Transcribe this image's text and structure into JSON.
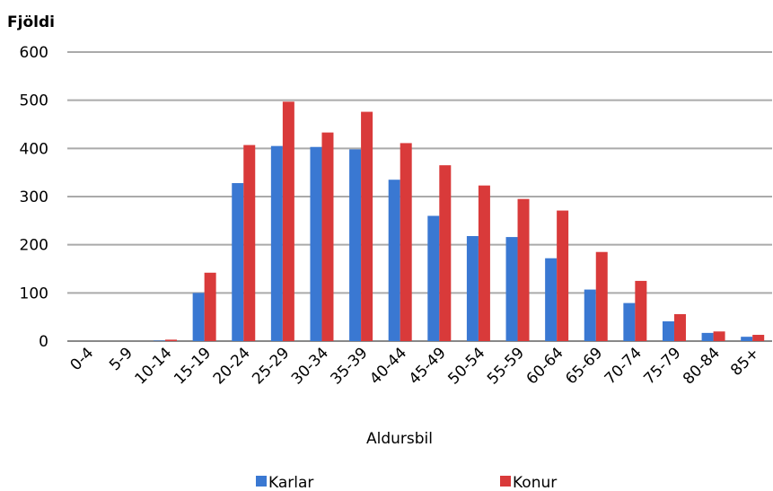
{
  "chart_data": {
    "type": "bar",
    "y_axis_title": "Fjöldi",
    "x_axis_title": "Aldursbil",
    "categories": [
      "0-4",
      "5-9",
      "10-14",
      "15-19",
      "20-24",
      "25-29",
      "30-34",
      "35-39",
      "40-44",
      "45-49",
      "50-54",
      "55-59",
      "60-64",
      "65-69",
      "70-74",
      "75-79",
      "80-84",
      "85+"
    ],
    "series": [
      {
        "name": "Karlar",
        "color": "#3a78d2",
        "values": [
          0,
          0,
          1,
          100,
          328,
          405,
          403,
          398,
          335,
          260,
          218,
          216,
          172,
          107,
          79,
          41,
          17,
          9
        ]
      },
      {
        "name": "Konur",
        "color": "#d93a3a",
        "values": [
          0,
          0,
          3,
          142,
          407,
          497,
          433,
          476,
          411,
          365,
          323,
          295,
          271,
          185,
          125,
          56,
          20,
          13
        ]
      }
    ],
    "ylim": [
      0,
      600
    ],
    "yticks": [
      0,
      100,
      200,
      300,
      400,
      500,
      600
    ],
    "grid": true,
    "legend": "bottom"
  }
}
